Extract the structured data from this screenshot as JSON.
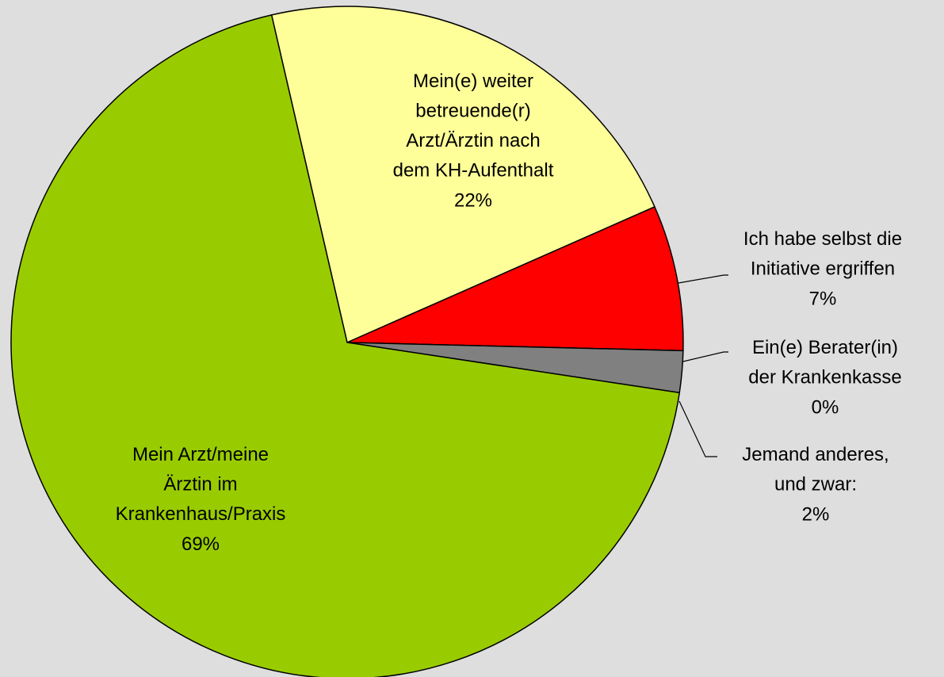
{
  "chart_data": {
    "type": "pie",
    "categories": [
      "Mein(e) weiter\nbetreuende(r)\nArzt/Ärztin nach\ndem KH-Aufenthalt",
      "Ich habe selbst die\nInitiative ergriffen",
      "Ein(e) Berater(in)\nder Krankenkasse",
      "Jemand anderes,\nund zwar:",
      "Mein Arzt/meine\nÄrztin im\nKrankenhaus/Praxis"
    ],
    "values": [
      22,
      7,
      0,
      2,
      69
    ],
    "value_labels": [
      "22%",
      "7%",
      "0%",
      "2%",
      "69%"
    ],
    "colors": [
      "#ffff99",
      "#ff0000",
      "#9999ff",
      "#808080",
      "#99cc00"
    ]
  }
}
